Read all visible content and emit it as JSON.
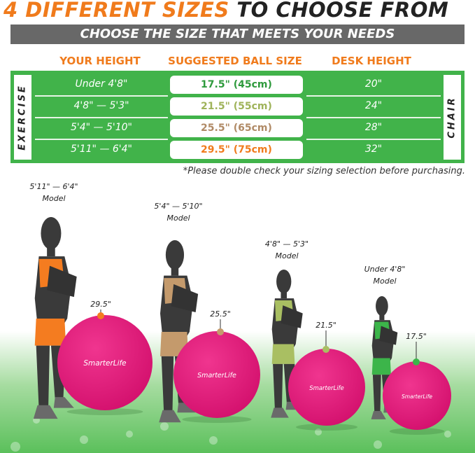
{
  "title": {
    "highlight": "4 DIFFERENT SIZES",
    "rest": "TO CHOOSE FROM"
  },
  "subtitle": "CHOOSE THE SIZE THAT MEETS YOUR NEEDS",
  "columns": {
    "height": "YOUR HEIGHT",
    "ball": "SUGGESTED BALL SIZE",
    "desk": "DESK HEIGHT"
  },
  "side_labels": {
    "left": "EXERCISE",
    "right": "CHAIR"
  },
  "rows": [
    {
      "height": "Under 4'8\"",
      "ball": "17.5\" (45cm)",
      "desk": "20\"",
      "color": "#2e9a3c"
    },
    {
      "height": "4'8\" — 5'3\"",
      "ball": "21.5\" (55cm)",
      "desk": "24\"",
      "color": "#9fb35a"
    },
    {
      "height": "5'4\" — 5'10\"",
      "ball": "25.5\" (65cm)",
      "desk": "28\"",
      "color": "#b08a66"
    },
    {
      "height": "5'11\" — 6'4\"",
      "ball": "29.5\" (75cm)",
      "desk": "32\"",
      "color": "#f07b1c"
    }
  ],
  "note": "*Please double check your sizing selection before purchasing.",
  "models": [
    {
      "height": "5'11\" — 6'4\"",
      "label": "Model",
      "ball": "29.5\"",
      "outfit": "#f47c20"
    },
    {
      "height": "5'4\" — 5'10\"",
      "label": "Model",
      "ball": "25.5\"",
      "outfit": "#c49a6c"
    },
    {
      "height": "4'8\" — 5'3\"",
      "label": "Model",
      "ball": "21.5\"",
      "outfit": "#a9bf62"
    },
    {
      "height": "Under 4'8\"",
      "label": "Model",
      "ball": "17.5\"",
      "outfit": "#3cb54a"
    }
  ],
  "ball_logo": "SmarterLife",
  "colors": {
    "accent": "#f07b1c",
    "table_green": "#41b34a",
    "ball_pink": "#e8197d",
    "bar_gray": "#686868"
  }
}
